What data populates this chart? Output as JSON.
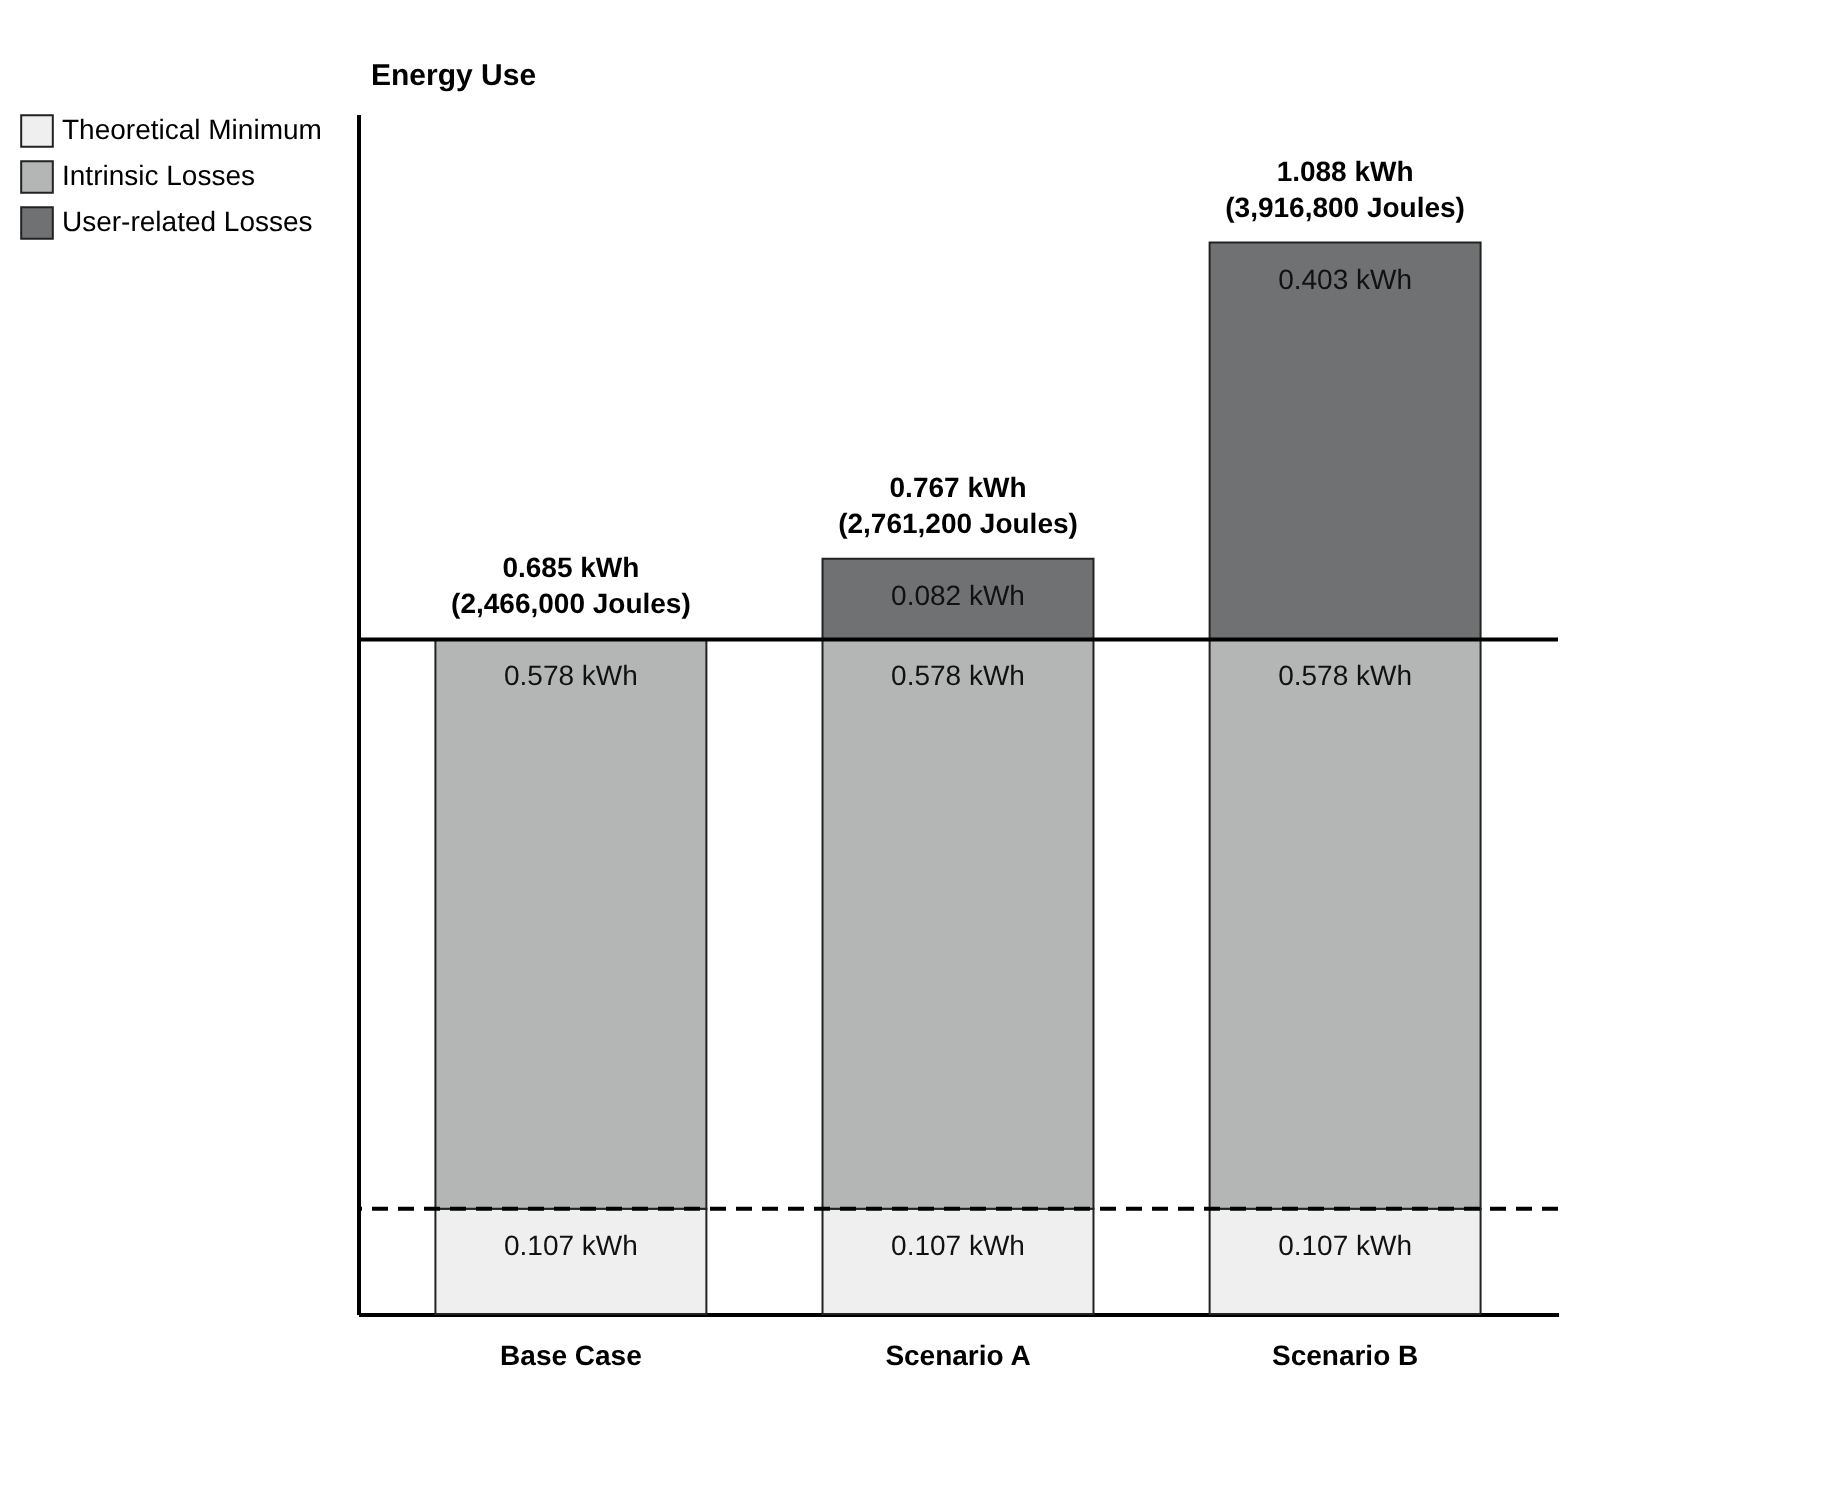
{
  "chart_data": {
    "type": "bar",
    "stacked": true,
    "ylabel": "Energy Use",
    "categories": [
      "Base Case",
      "Scenario A",
      "Scenario B"
    ],
    "series": [
      {
        "name": "Theoretical Minimum",
        "color": "#efefef",
        "values": [
          0.107,
          0.107,
          0.107
        ],
        "value_labels": [
          "0.107 kWh",
          "0.107 kWh",
          "0.107 kWh"
        ]
      },
      {
        "name": "Intrinsic Losses",
        "color": "#b4b6b6",
        "values": [
          0.578,
          0.578,
          0.578
        ],
        "value_labels": [
          "0.578 kWh",
          "0.578 kWh",
          "0.578 kWh"
        ]
      },
      {
        "name": "User-related Losses",
        "color": "#707172",
        "values": [
          null,
          0.082,
          0.403
        ],
        "value_labels": [
          null,
          "0.082 kWh",
          "0.403 kWh"
        ]
      }
    ],
    "totals": [
      "0.685 kWh\n(2,466,000 Joules)",
      "0.767 kWh\n(2,761,200 Joules)",
      "1.088 kWh\n(3,916,800 Joules)"
    ],
    "ref_lines": [
      {
        "axis": "y",
        "value": 0.107,
        "line_style": "dashed"
      },
      {
        "axis": "y",
        "value": 0.685,
        "line_style": "solid"
      }
    ],
    "legend": "left",
    "grid": false
  }
}
